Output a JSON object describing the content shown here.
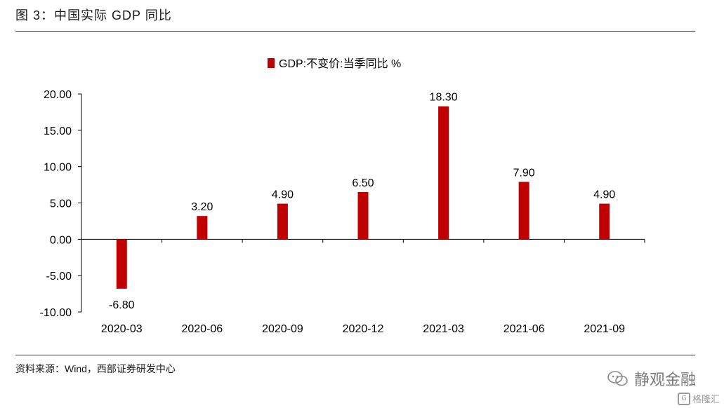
{
  "figure": {
    "title": "图 3：中国实际 GDP 同比",
    "source": "资料来源：Wind，西部证券研发中心"
  },
  "watermark": {
    "text": "静观金融",
    "icon": "wechat-icon"
  },
  "brand": {
    "text": "格隆汇",
    "icon": "g-logo-icon"
  },
  "colors": {
    "bar": "#C00000",
    "axis": "#000000",
    "rule": "#333333"
  },
  "chart_data": {
    "type": "bar",
    "title": "",
    "xlabel": "",
    "ylabel": "",
    "categories": [
      "2020-03",
      "2020-06",
      "2020-09",
      "2020-12",
      "2021-03",
      "2021-06",
      "2021-09"
    ],
    "series": [
      {
        "name": "GDP:不变价:当季同比 %",
        "values": [
          -6.8,
          3.2,
          4.9,
          6.5,
          18.3,
          7.9,
          4.9
        ]
      }
    ],
    "data_labels": [
      "-6.80",
      "3.20",
      "4.90",
      "6.50",
      "18.30",
      "7.90",
      "4.90"
    ],
    "ylim": [
      -10,
      20
    ],
    "yticks": [
      20,
      15,
      10,
      5,
      0,
      -5,
      -10
    ],
    "ytick_labels": [
      "20.00",
      "15.00",
      "10.00",
      "5.00",
      "0.00",
      "-5.00",
      "-10.00"
    ],
    "grid": false,
    "legend_position": "top-center"
  }
}
